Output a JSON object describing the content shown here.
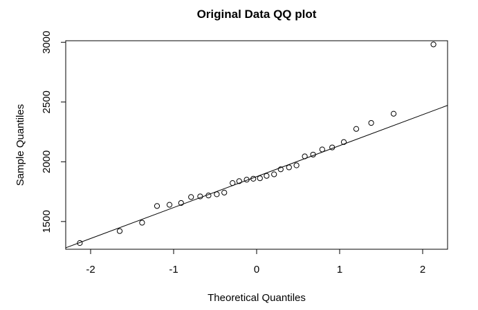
{
  "chart_data": {
    "type": "scatter",
    "title": "Original Data QQ plot",
    "xlabel": "Theoretical Quantiles",
    "ylabel": "Sample Quantiles",
    "xlim": [
      -2.3,
      2.3
    ],
    "ylim": [
      1268,
      3013
    ],
    "x_ticks": [
      -2,
      -1,
      0,
      1,
      2
    ],
    "x_tick_labels": [
      "-2",
      "-1",
      "0",
      "1",
      "2"
    ],
    "y_ticks": [
      1500,
      2000,
      2500,
      3000
    ],
    "y_tick_labels": [
      "1500",
      "2000",
      "2500",
      "3000"
    ],
    "grid": false,
    "marker": "open-circle",
    "points": [
      {
        "x": -2.13,
        "y": 1320
      },
      {
        "x": -1.65,
        "y": 1420
      },
      {
        "x": -1.38,
        "y": 1490
      },
      {
        "x": -1.2,
        "y": 1630
      },
      {
        "x": -1.05,
        "y": 1640
      },
      {
        "x": -0.91,
        "y": 1655
      },
      {
        "x": -0.79,
        "y": 1705
      },
      {
        "x": -0.68,
        "y": 1710
      },
      {
        "x": -0.58,
        "y": 1718
      },
      {
        "x": -0.48,
        "y": 1728
      },
      {
        "x": -0.39,
        "y": 1742
      },
      {
        "x": -0.29,
        "y": 1822
      },
      {
        "x": -0.21,
        "y": 1838
      },
      {
        "x": -0.12,
        "y": 1850
      },
      {
        "x": -0.04,
        "y": 1858
      },
      {
        "x": 0.04,
        "y": 1862
      },
      {
        "x": 0.12,
        "y": 1882
      },
      {
        "x": 0.21,
        "y": 1895
      },
      {
        "x": 0.29,
        "y": 1937
      },
      {
        "x": 0.39,
        "y": 1953
      },
      {
        "x": 0.48,
        "y": 1970
      },
      {
        "x": 0.58,
        "y": 2045
      },
      {
        "x": 0.68,
        "y": 2060
      },
      {
        "x": 0.79,
        "y": 2103
      },
      {
        "x": 0.91,
        "y": 2120
      },
      {
        "x": 1.05,
        "y": 2165
      },
      {
        "x": 1.2,
        "y": 2275
      },
      {
        "x": 1.38,
        "y": 2325
      },
      {
        "x": 1.65,
        "y": 2402
      },
      {
        "x": 2.13,
        "y": 2982
      }
    ],
    "reference_line": {
      "x1": -2.3,
      "y1": 1280,
      "x2": 2.3,
      "y2": 2472
    }
  }
}
